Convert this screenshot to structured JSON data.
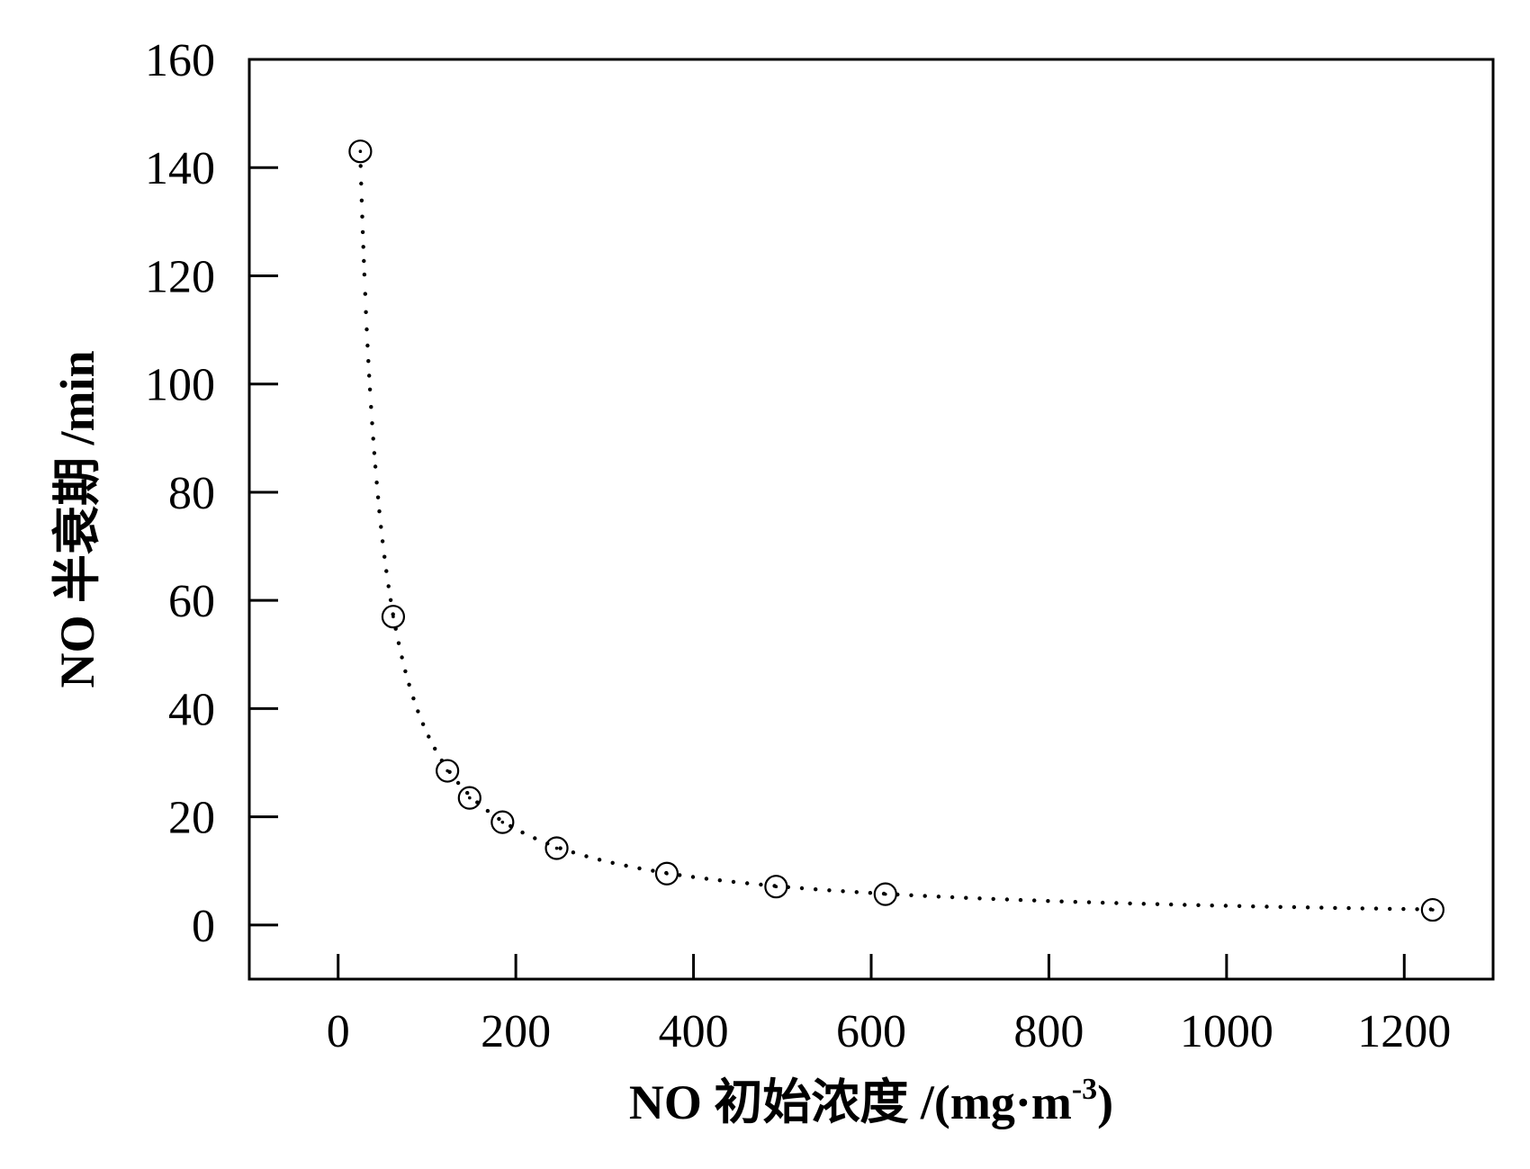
{
  "chart_data": {
    "type": "scatter",
    "title": "",
    "xlabel": "NO 初始浓度 /(mg·m",
    "xlabel_sup": "-3",
    "xlabel_tail": ")",
    "ylabel": "NO 半衰期 /min",
    "xlim": [
      -100,
      1300
    ],
    "ylim": [
      -10,
      160
    ],
    "xticks": [
      0,
      200,
      400,
      600,
      800,
      1000,
      1200
    ],
    "yticks": [
      0,
      20,
      40,
      60,
      80,
      100,
      120,
      140,
      160
    ],
    "grid": false,
    "legend": "none",
    "series": [
      {
        "marker": "open-circle",
        "x": [
          25,
          62,
          123,
          148,
          185,
          246,
          370,
          493,
          616,
          1232
        ],
        "y": [
          143,
          57,
          28.5,
          23.5,
          19,
          14.2,
          9.5,
          7.1,
          5.7,
          2.8
        ]
      }
    ],
    "fit": {
      "style": "dotted",
      "form": "y = a / x",
      "a": 3550,
      "x_range": [
        25,
        1232
      ]
    }
  }
}
